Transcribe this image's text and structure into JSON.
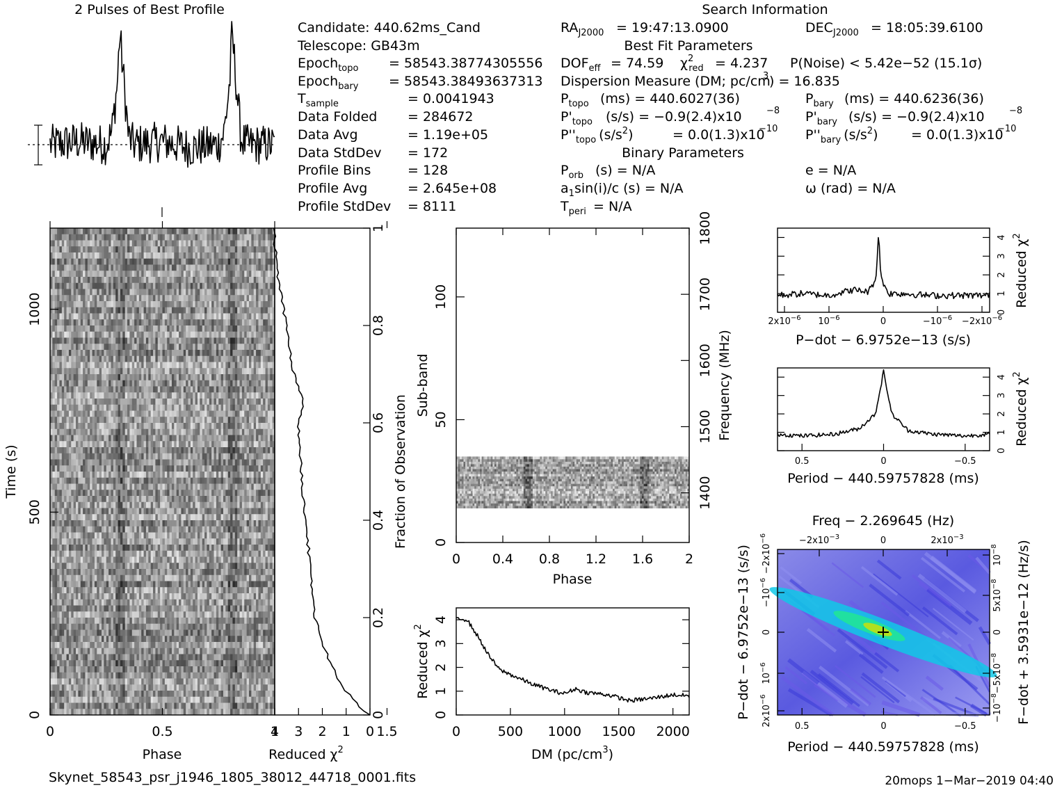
{
  "header": {
    "profile_title": "2 Pulses of Best Profile",
    "search_title": "Search Information",
    "best_fit_title": "Best Fit Parameters",
    "binary_title": "Binary Parameters"
  },
  "info": {
    "candidate": "Candidate:  440.62ms_Cand",
    "telescope": "Telescope:  GB43m",
    "epoch_topo": "= 58543.38774305556",
    "epoch_bary": "= 58543.38493637313",
    "t_sample": "=  0.0041943",
    "data_folded_label": "Data Folded",
    "data_folded": "=  284672",
    "data_avg_label": "Data Avg",
    "data_avg": "=  1.19e+05",
    "data_stddev_label": "Data StdDev",
    "data_stddev": "=  172",
    "profile_bins_label": "Profile Bins",
    "profile_bins": "=  128",
    "profile_avg_label": "Profile Avg",
    "profile_avg": "=  2.645e+08",
    "profile_stddev_label": "Profile StdDev",
    "profile_stddev": "=  8111",
    "ra": "= 19:47:13.0900",
    "dec": "= 18:05:39.6100",
    "dof": "= 74.59",
    "chi2": "= 4.237",
    "pnoise": "P(Noise) < 5.42e−52  (15.1σ)",
    "dm": "Dispersion Measure (DM; pc/cm",
    "dm_value": ") = 16.835",
    "p_topo": "(ms) =  440.6027(36)",
    "p_bary": "(ms) =  440.6236(36)",
    "pd_topo": "(s/s) = −0.9(2.4)x10",
    "pd_bary": "(s/s) = −0.9(2.4)x10",
    "pdd_topo": "= 0.0(1.3)x10",
    "pdd_bary": "= 0.0(1.3)x10",
    "porb": "(s) = N/A",
    "a1sini": "a",
    "a1sini_tail": "sin(i)/c (s) = N/A",
    "tperi": "= N/A",
    "e": "e = N/A",
    "omega": "ω (rad) = N/A"
  },
  "footer": {
    "filename": "Skynet_58543_psr_j1946_1805_38012_44718_0001.fits",
    "stamp": "20mops   1−Mar−2019 04:40"
  },
  "chart_data": [
    {
      "type": "line",
      "name": "profile",
      "title": "2 Pulses of Best Profile",
      "xlabel": "",
      "ylabel": "",
      "x": [
        0.0,
        0.25,
        0.5,
        0.55,
        0.6,
        0.62,
        0.65,
        0.7,
        0.75,
        1.0,
        1.25,
        1.5,
        1.55,
        1.6,
        1.62,
        1.65,
        1.7,
        1.75,
        2.0
      ],
      "y": [
        0.0,
        0.1,
        0.0,
        0.4,
        2.0,
        3.6,
        2.3,
        0.2,
        0.0,
        0.1,
        -0.1,
        0.0,
        0.4,
        2.0,
        3.6,
        2.3,
        0.2,
        0.0,
        0.0
      ],
      "xlim": [
        0,
        2
      ]
    },
    {
      "type": "heatmap",
      "name": "time-phase",
      "xlabel": "Phase",
      "ylabel": "Time (s)",
      "xlim": [
        0,
        2
      ],
      "ylim": [
        0,
        1200
      ],
      "x_ticks": [
        "0",
        "0.5",
        "1",
        "1.5"
      ],
      "y_ticks": [
        "0",
        "500",
        "1000"
      ],
      "pulse_phase": 0.62
    },
    {
      "type": "line",
      "name": "time-chi2",
      "xlabel": "Reduced χ",
      "xlabel_sup": "2",
      "ylabel": "Fraction of Observation",
      "x": [
        0.0,
        0.5,
        1.2,
        1.6,
        2.0,
        2.3,
        2.5,
        2.7,
        2.9,
        3.0,
        2.8,
        3.2,
        3.5,
        3.8,
        3.9,
        4.0,
        4.0
      ],
      "y": [
        0.0,
        0.02,
        0.06,
        0.1,
        0.15,
        0.2,
        0.3,
        0.4,
        0.5,
        0.6,
        0.64,
        0.7,
        0.8,
        0.88,
        0.92,
        0.97,
        1.0
      ],
      "xlim": [
        4,
        0
      ],
      "ylim": [
        0,
        1
      ],
      "x_ticks": [
        "4",
        "3",
        "2",
        "1",
        "0"
      ],
      "y_ticks": [
        "0",
        "0.2",
        "0.4",
        "0.6",
        "0.8",
        "1"
      ]
    },
    {
      "type": "heatmap",
      "name": "subband-phase",
      "xlabel": "Phase",
      "ylabel": "Sub-band",
      "y2label": "Frequency (MHz)",
      "xlim": [
        0,
        2
      ],
      "ylim": [
        0,
        128
      ],
      "y2lim": [
        1325,
        1800
      ],
      "x_ticks": [
        "0",
        "0.4",
        "0.8",
        "1.2",
        "1.6",
        "2"
      ],
      "y_ticks": [
        "0",
        "50",
        "100"
      ],
      "y2_ticks": [
        "1400",
        "1500",
        "1600",
        "1700",
        "1800"
      ],
      "band_rows": [
        14,
        35
      ],
      "pulse_phase": 0.62
    },
    {
      "type": "line",
      "name": "dm-curve",
      "xlabel": "DM (pc/cm",
      "xlabel_sup": "3",
      "xlabel_tail": ")",
      "ylabel": "Reduced χ",
      "ylabel_sup": "2",
      "x": [
        0,
        100,
        200,
        300,
        400,
        500,
        700,
        900,
        1000,
        1100,
        1200,
        1400,
        1600,
        1800,
        2000,
        2150
      ],
      "y": [
        4.1,
        4.0,
        3.3,
        2.5,
        1.9,
        1.7,
        1.3,
        1.0,
        0.9,
        1.1,
        0.95,
        0.85,
        0.6,
        0.7,
        0.85,
        0.8
      ],
      "xlim": [
        0,
        2150
      ],
      "ylim": [
        0,
        4.5
      ],
      "x_ticks": [
        "0",
        "500",
        "1000",
        "1500",
        "2000"
      ],
      "y_ticks": [
        "0",
        "1",
        "2",
        "3",
        "4"
      ]
    },
    {
      "type": "line",
      "name": "pdot-curve",
      "xlabel": "P−dot − 6.9752e−13 (s/s)",
      "ylabel": "Reduced χ",
      "ylabel_sup": "2",
      "x": [
        2e-06,
        1.5e-06,
        1e-06,
        5e-07,
        2e-07,
        5e-08,
        0,
        -5e-08,
        -2e-07,
        -5e-07,
        -1e-06,
        -1.5e-06,
        -2.2e-06
      ],
      "y": [
        0.9,
        1.0,
        0.9,
        1.2,
        1.1,
        1.8,
        4.3,
        1.8,
        1.0,
        1.0,
        0.9,
        0.9,
        0.9
      ],
      "xlim": [
        2e-06,
        -2.2e-06
      ],
      "ylim": [
        0,
        4.5
      ],
      "x_ticks": [
        "2x10",
        "10",
        "0",
        "−10",
        "−2x10"
      ],
      "y_ticks": [
        "0",
        "1",
        "2",
        "3",
        "4"
      ]
    },
    {
      "type": "line",
      "name": "period-curve",
      "xlabel": "Period − 440.59757828 (ms)",
      "ylabel": "Reduced χ",
      "ylabel_sup": "2",
      "x": [
        0.65,
        0.5,
        0.3,
        0.15,
        0.05,
        0.0,
        -0.05,
        -0.15,
        -0.3,
        -0.5,
        -0.65
      ],
      "y": [
        0.9,
        0.8,
        0.9,
        1.2,
        2.0,
        4.3,
        2.0,
        1.1,
        0.9,
        0.8,
        0.9
      ],
      "xlim": [
        0.65,
        -0.65
      ],
      "ylim": [
        0,
        4.5
      ],
      "x_ticks": [
        "0.5",
        "0",
        "−0.5"
      ],
      "y_ticks": [
        "0",
        "1",
        "2",
        "3",
        "4"
      ]
    },
    {
      "type": "heatmap",
      "name": "period-pdot",
      "title": "Freq − 2.269645 (Hz)",
      "xlabel": "Period − 440.59757828 (ms)",
      "ylabel": "P−dot − 6.9752e−13 (s/s)",
      "y2label": "F−dot + 3.5931e−12 (Hz/s)",
      "xlim": [
        0.65,
        -0.65
      ],
      "x_ticks": [
        "0.5",
        "0",
        "−0.5"
      ],
      "x2_ticks": [
        "−2x10",
        "0",
        "2x10"
      ],
      "y_ticks": [
        "2x10",
        "10",
        "0",
        "−10",
        "−2x10"
      ],
      "y2_ticks": [
        "−10",
        "−5x10",
        "0",
        "5x10",
        "10"
      ],
      "colors": [
        "#3a3ad8",
        "#6a5ae8",
        "#9090f0",
        "#10c8e8",
        "#20e0a0",
        "#b0e020"
      ]
    }
  ]
}
